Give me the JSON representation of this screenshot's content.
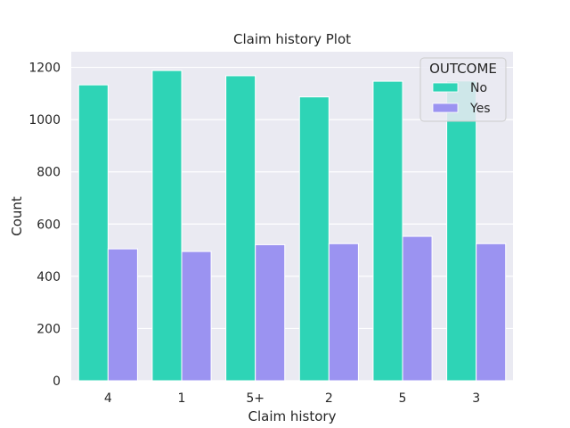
{
  "chart_data": {
    "type": "bar",
    "title": "Claim history Plot",
    "xlabel": "Claim history",
    "ylabel": "Count",
    "categories": [
      "4",
      "1",
      "5+",
      "2",
      "5",
      "3"
    ],
    "series": [
      {
        "name": "No",
        "values": [
          1133,
          1188,
          1168,
          1087,
          1147,
          1148
        ],
        "color": "#2ed4b6"
      },
      {
        "name": "Yes",
        "values": [
          505,
          495,
          521,
          525,
          553,
          525
        ],
        "color": "#9b93f1"
      }
    ],
    "ylim": [
      0,
      1260
    ],
    "yticks": [
      0,
      200,
      400,
      600,
      800,
      1000,
      1200
    ],
    "grid": true,
    "legend": {
      "title": "OUTCOME",
      "placement": "top-right"
    },
    "background": "#eaeaf2"
  }
}
